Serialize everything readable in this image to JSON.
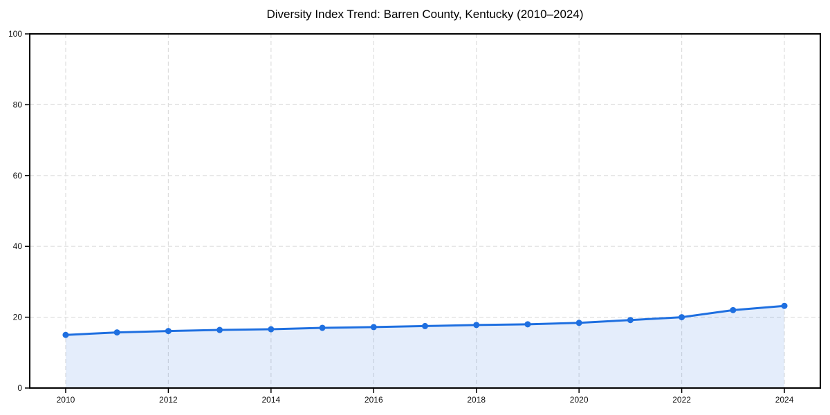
{
  "chart_data": {
    "type": "area",
    "title": "Diversity Index Trend: Barren County, Kentucky (2010–2024)",
    "xlabel": "",
    "ylabel": "",
    "x": [
      2010,
      2011,
      2012,
      2013,
      2014,
      2015,
      2016,
      2017,
      2018,
      2019,
      2020,
      2021,
      2022,
      2023,
      2024
    ],
    "series": [
      {
        "name": "Diversity Index",
        "values": [
          15.0,
          15.7,
          16.1,
          16.4,
          16.6,
          17.0,
          17.2,
          17.5,
          17.8,
          18.0,
          18.4,
          19.2,
          20.0,
          22.0,
          23.2
        ]
      }
    ],
    "xlim": [
      2009.3,
      2024.7
    ],
    "ylim": [
      0,
      100
    ],
    "xticks": [
      2010,
      2012,
      2014,
      2016,
      2018,
      2020,
      2022,
      2024
    ],
    "yticks": [
      0,
      20,
      40,
      60,
      80,
      100
    ],
    "grid": true,
    "grid_style": "dashed",
    "legend_position": "none",
    "line_color": "#1E6FE0",
    "fill_opacity": 0.12,
    "marker": "circle",
    "marker_radius": 4.5,
    "grid_color": "#DEDEDE",
    "spine_color": "#000000",
    "tick_label_color": "#111111"
  }
}
